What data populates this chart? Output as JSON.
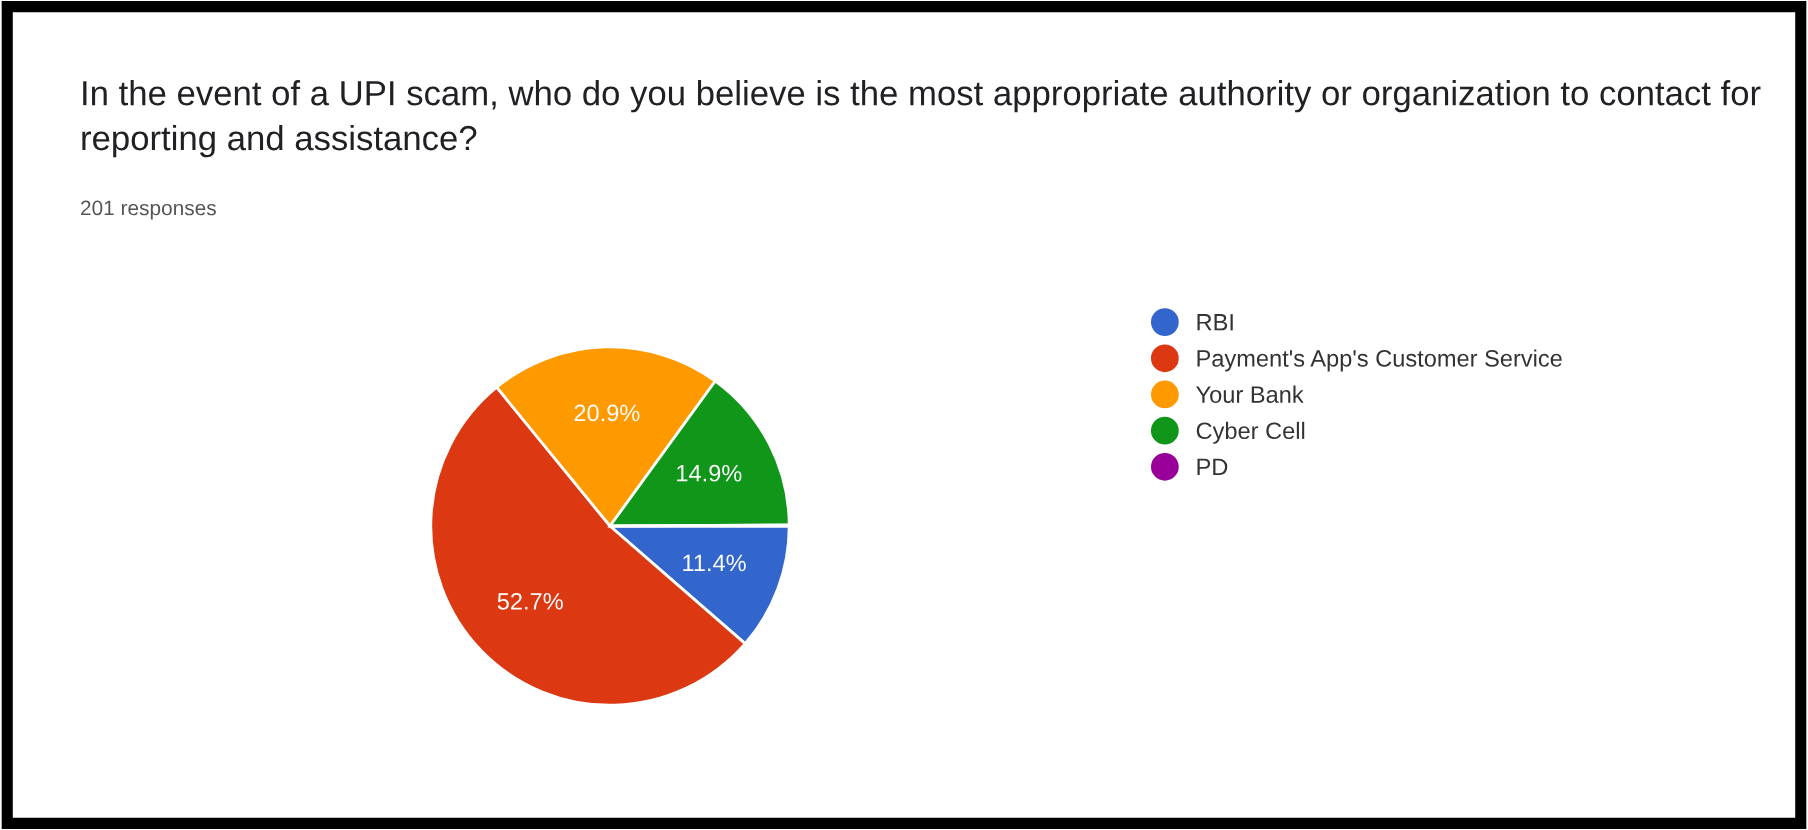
{
  "chart_data": {
    "type": "pie",
    "title": "In the event of a UPI scam, who do you believe is the most appropriate authority or organization to contact for reporting and assistance?",
    "subtitle": "201 responses",
    "categories": [
      "RBI",
      "Payment's App's Customer Service",
      "Your Bank",
      "Cyber Cell",
      "PD"
    ],
    "values": [
      11.4,
      52.7,
      20.9,
      14.9,
      0.1
    ],
    "colors": [
      "#3366cc",
      "#dc3912",
      "#ff9900",
      "#109618",
      "#990099"
    ],
    "value_labels": [
      "11.4%",
      "52.7%",
      "20.9%",
      "14.9%",
      null
    ],
    "legend": "right"
  }
}
